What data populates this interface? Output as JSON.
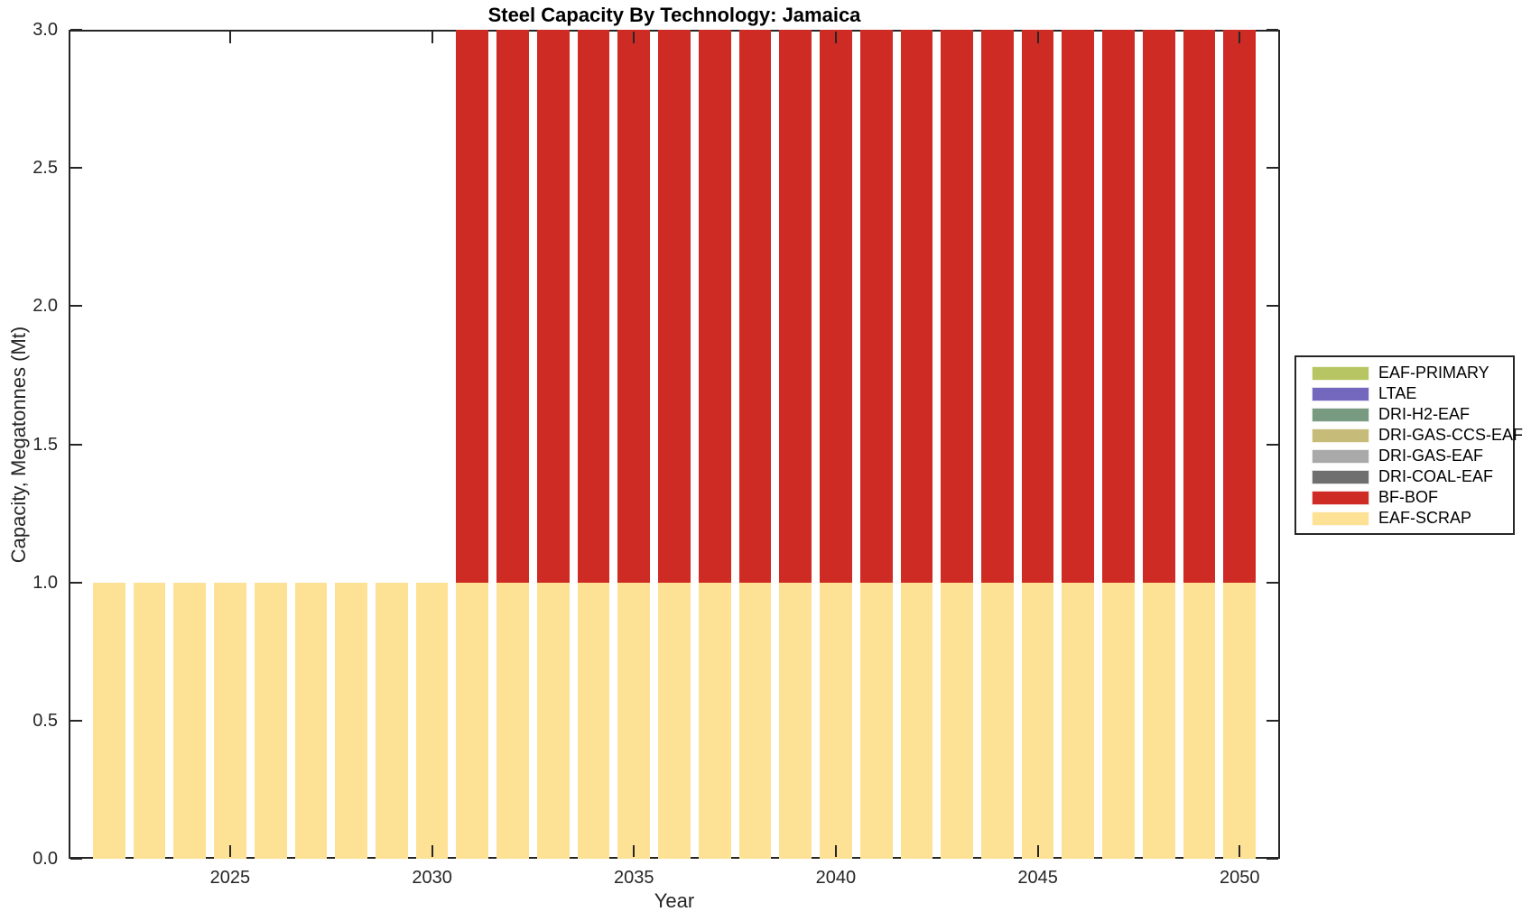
{
  "title": "Steel Capacity By Technology: Jamaica",
  "axes": {
    "xlabel": "Year",
    "ylabel": "Capacity, Megatonnes (Mt)",
    "x_ticks": [
      {
        "value": 2025,
        "label": "2025"
      },
      {
        "value": 2030,
        "label": "2030"
      },
      {
        "value": 2035,
        "label": "2035"
      },
      {
        "value": 2040,
        "label": "2040"
      },
      {
        "value": 2045,
        "label": "2045"
      },
      {
        "value": 2050,
        "label": "2050"
      }
    ],
    "y_ticks": [
      {
        "value": 0.0,
        "label": "0.0"
      },
      {
        "value": 0.5,
        "label": "0.5"
      },
      {
        "value": 1.0,
        "label": "1.0"
      },
      {
        "value": 1.5,
        "label": "1.5"
      },
      {
        "value": 2.0,
        "label": "2.0"
      },
      {
        "value": 2.5,
        "label": "2.5"
      },
      {
        "value": 3.0,
        "label": "3.0"
      }
    ]
  },
  "colors": {
    "axis": "#262626",
    "background": "#ffffff"
  },
  "chart_data": {
    "type": "bar",
    "stacked": true,
    "title": "Steel Capacity By Technology: Jamaica",
    "xlabel": "Year",
    "ylabel": "Capacity, Megatonnes (Mt)",
    "xlim": [
      2021,
      2051
    ],
    "ylim": [
      0,
      3
    ],
    "grid": false,
    "bar_width_years": 0.8,
    "x": [
      2022,
      2023,
      2024,
      2025,
      2026,
      2027,
      2028,
      2029,
      2030,
      2031,
      2032,
      2033,
      2034,
      2035,
      2036,
      2037,
      2038,
      2039,
      2040,
      2041,
      2042,
      2043,
      2044,
      2045,
      2046,
      2047,
      2048,
      2049,
      2050
    ],
    "series": [
      {
        "name": "EAF-SCRAP",
        "color": "#FDE296",
        "values": [
          1,
          1,
          1,
          1,
          1,
          1,
          1,
          1,
          1,
          1,
          1,
          1,
          1,
          1,
          1,
          1,
          1,
          1,
          1,
          1,
          1,
          1,
          1,
          1,
          1,
          1,
          1,
          1,
          1
        ]
      },
      {
        "name": "BF-BOF",
        "color": "#CE2B24",
        "values": [
          0,
          0,
          0,
          0,
          0,
          0,
          0,
          0,
          0,
          2,
          2,
          2,
          2,
          2,
          2,
          2,
          2,
          2,
          2,
          2,
          2,
          2,
          2,
          2,
          2,
          2,
          2,
          2,
          2
        ]
      },
      {
        "name": "DRI-COAL-EAF",
        "color": "#6F6F6F",
        "values": [
          0,
          0,
          0,
          0,
          0,
          0,
          0,
          0,
          0,
          0,
          0,
          0,
          0,
          0,
          0,
          0,
          0,
          0,
          0,
          0,
          0,
          0,
          0,
          0,
          0,
          0,
          0,
          0,
          0
        ]
      },
      {
        "name": "DRI-GAS-EAF",
        "color": "#A9A9A9",
        "values": [
          0,
          0,
          0,
          0,
          0,
          0,
          0,
          0,
          0,
          0,
          0,
          0,
          0,
          0,
          0,
          0,
          0,
          0,
          0,
          0,
          0,
          0,
          0,
          0,
          0,
          0,
          0,
          0,
          0
        ]
      },
      {
        "name": "DRI-GAS-CCS-EAF",
        "color": "#C6BB78",
        "values": [
          0,
          0,
          0,
          0,
          0,
          0,
          0,
          0,
          0,
          0,
          0,
          0,
          0,
          0,
          0,
          0,
          0,
          0,
          0,
          0,
          0,
          0,
          0,
          0,
          0,
          0,
          0,
          0,
          0
        ]
      },
      {
        "name": "DRI-H2-EAF",
        "color": "#789A80",
        "values": [
          0,
          0,
          0,
          0,
          0,
          0,
          0,
          0,
          0,
          0,
          0,
          0,
          0,
          0,
          0,
          0,
          0,
          0,
          0,
          0,
          0,
          0,
          0,
          0,
          0,
          0,
          0,
          0,
          0
        ]
      },
      {
        "name": "LTAE",
        "color": "#7468BE",
        "values": [
          0,
          0,
          0,
          0,
          0,
          0,
          0,
          0,
          0,
          0,
          0,
          0,
          0,
          0,
          0,
          0,
          0,
          0,
          0,
          0,
          0,
          0,
          0,
          0,
          0,
          0,
          0,
          0,
          0
        ]
      },
      {
        "name": "EAF-PRIMARY",
        "color": "#B8C563",
        "values": [
          0,
          0,
          0,
          0,
          0,
          0,
          0,
          0,
          0,
          0,
          0,
          0,
          0,
          0,
          0,
          0,
          0,
          0,
          0,
          0,
          0,
          0,
          0,
          0,
          0,
          0,
          0,
          0,
          0
        ]
      }
    ],
    "legend": {
      "position": "right",
      "items": [
        "EAF-PRIMARY",
        "LTAE",
        "DRI-H2-EAF",
        "DRI-GAS-CCS-EAF",
        "DRI-GAS-EAF",
        "DRI-COAL-EAF",
        "BF-BOF",
        "EAF-SCRAP"
      ]
    }
  }
}
